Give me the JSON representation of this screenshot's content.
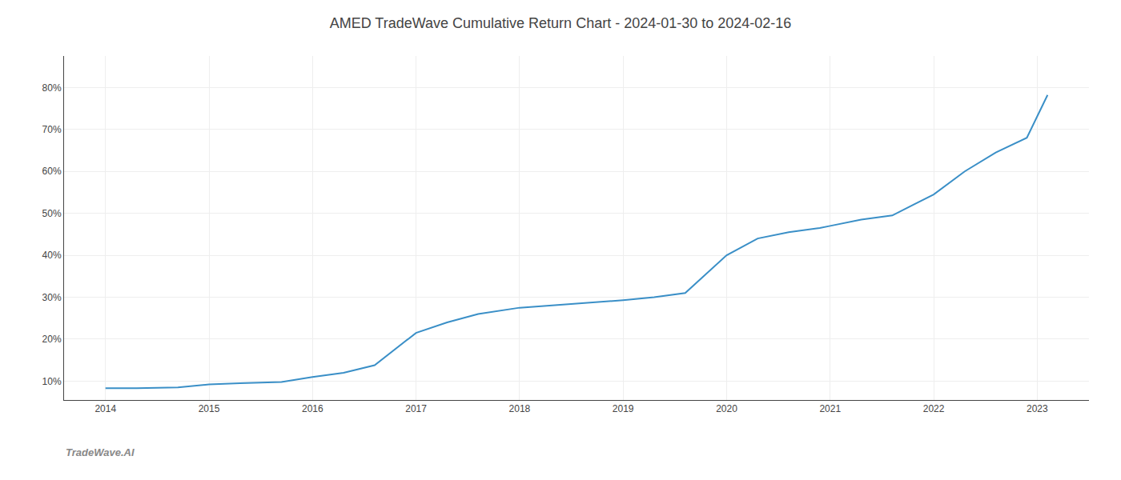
{
  "chart_data": {
    "type": "line",
    "title": "AMED TradeWave Cumulative Return Chart - 2024-01-30 to 2024-02-16",
    "annotations": [
      "TradeWave.AI"
    ],
    "x": [
      2014.0,
      2014.3,
      2014.7,
      2015.0,
      2015.3,
      2015.7,
      2016.0,
      2016.3,
      2016.6,
      2017.0,
      2017.3,
      2017.6,
      2018.0,
      2018.3,
      2018.6,
      2019.0,
      2019.3,
      2019.6,
      2020.0,
      2020.3,
      2020.6,
      2020.9,
      2021.0,
      2021.3,
      2021.6,
      2022.0,
      2022.3,
      2022.6,
      2022.9,
      2023.1
    ],
    "values": [
      0.083,
      0.083,
      0.085,
      0.092,
      0.095,
      0.098,
      0.11,
      0.12,
      0.138,
      0.215,
      0.24,
      0.26,
      0.275,
      0.28,
      0.285,
      0.293,
      0.3,
      0.31,
      0.4,
      0.44,
      0.455,
      0.465,
      0.47,
      0.485,
      0.495,
      0.545,
      0.6,
      0.645,
      0.68,
      0.782
    ],
    "color": "#3a8fc7",
    "xlim": [
      2013.6,
      2023.5
    ],
    "xticks": [
      2014,
      2015,
      2016,
      2017,
      2018,
      2019,
      2020,
      2021,
      2022,
      2023
    ],
    "ylim": [
      0.055,
      0.875
    ],
    "yticks": [
      {
        "value": 0.1,
        "label": "10%"
      },
      {
        "value": 0.2,
        "label": "20%"
      },
      {
        "value": 0.3,
        "label": "30%"
      },
      {
        "value": 0.4,
        "label": "40%"
      },
      {
        "value": 0.5,
        "label": "50%"
      },
      {
        "value": 0.6,
        "label": "60%"
      },
      {
        "value": 0.7,
        "label": "70%"
      },
      {
        "value": 0.8,
        "label": "80%"
      }
    ],
    "grid": true
  }
}
